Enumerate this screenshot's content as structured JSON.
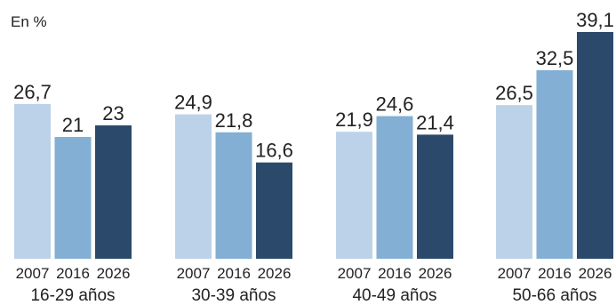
{
  "chart_data": {
    "type": "bar",
    "title": "",
    "unit_label": "En %",
    "years": [
      "2007",
      "2016",
      "2026"
    ],
    "groups": [
      {
        "name": "16-29 años",
        "values": [
          26.7,
          21,
          23
        ],
        "value_labels": [
          "26,7",
          "21",
          "23"
        ]
      },
      {
        "name": "30-39 años",
        "values": [
          24.9,
          21.8,
          16.6
        ],
        "value_labels": [
          "24,9",
          "21,8",
          "16,6"
        ]
      },
      {
        "name": "40-49 años",
        "values": [
          21.9,
          24.6,
          21.4
        ],
        "value_labels": [
          "21,9",
          "24,6",
          "21,4"
        ]
      },
      {
        "name": "50-66 años",
        "values": [
          26.5,
          32.5,
          39.1
        ],
        "value_labels": [
          "26,5",
          "32,5",
          "39,1"
        ]
      }
    ],
    "ylim": [
      0,
      39.1
    ],
    "grid": false,
    "colors": [
      "#bcd2e8",
      "#82afd3",
      "#2b4a6b"
    ]
  }
}
